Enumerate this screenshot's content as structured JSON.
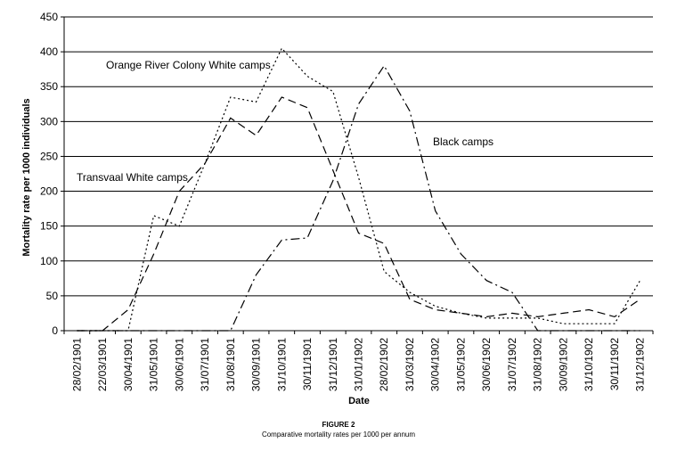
{
  "chart_data": {
    "type": "line",
    "xlabel": "Date",
    "ylabel": "Mortality rate per 1000 individuals",
    "ylim": [
      0,
      450
    ],
    "yticks": [
      0,
      50,
      100,
      150,
      200,
      250,
      300,
      350,
      400,
      450
    ],
    "grid": "horizontal",
    "categories": [
      "28/02/1901",
      "22/03/1901",
      "30/04/1901",
      "31/05/1901",
      "30/06/1901",
      "31/07/1901",
      "31/08/1901",
      "30/09/1901",
      "31/10/1901",
      "30/11/1901",
      "31/12/1901",
      "31/01/1902",
      "28/02/1902",
      "31/03/1902",
      "30/04/1902",
      "31/05/1902",
      "30/06/1902",
      "31/07/1902",
      "31/08/1902",
      "30/09/1902",
      "31/10/1902",
      "30/11/1902",
      "31/12/1902"
    ],
    "series": [
      {
        "name": "Orange River Colony White camps",
        "style": "dotted",
        "values": [
          0,
          0,
          0,
          165,
          150,
          240,
          335,
          328,
          405,
          365,
          343,
          220,
          85,
          55,
          35,
          25,
          18,
          18,
          18,
          10,
          10,
          10,
          72
        ]
      },
      {
        "name": "Transvaal White camps",
        "style": "dashed",
        "values": [
          0,
          0,
          30,
          110,
          200,
          240,
          305,
          280,
          335,
          320,
          230,
          140,
          125,
          45,
          30,
          25,
          20,
          25,
          20,
          25,
          30,
          20,
          45
        ]
      },
      {
        "name": "Black camps",
        "style": "dash-dot",
        "values": [
          0,
          0,
          0,
          0,
          0,
          0,
          0,
          80,
          130,
          133,
          215,
          325,
          380,
          315,
          172,
          110,
          72,
          55,
          0,
          0,
          0,
          0,
          0
        ]
      }
    ],
    "annotations": [
      "Orange River Colony White camps",
      "Transvaal White camps",
      "Black camps"
    ]
  },
  "figure": {
    "title": "FIGURE 2",
    "subtitle": "Comparative mortality rates per 1000 per annum"
  }
}
